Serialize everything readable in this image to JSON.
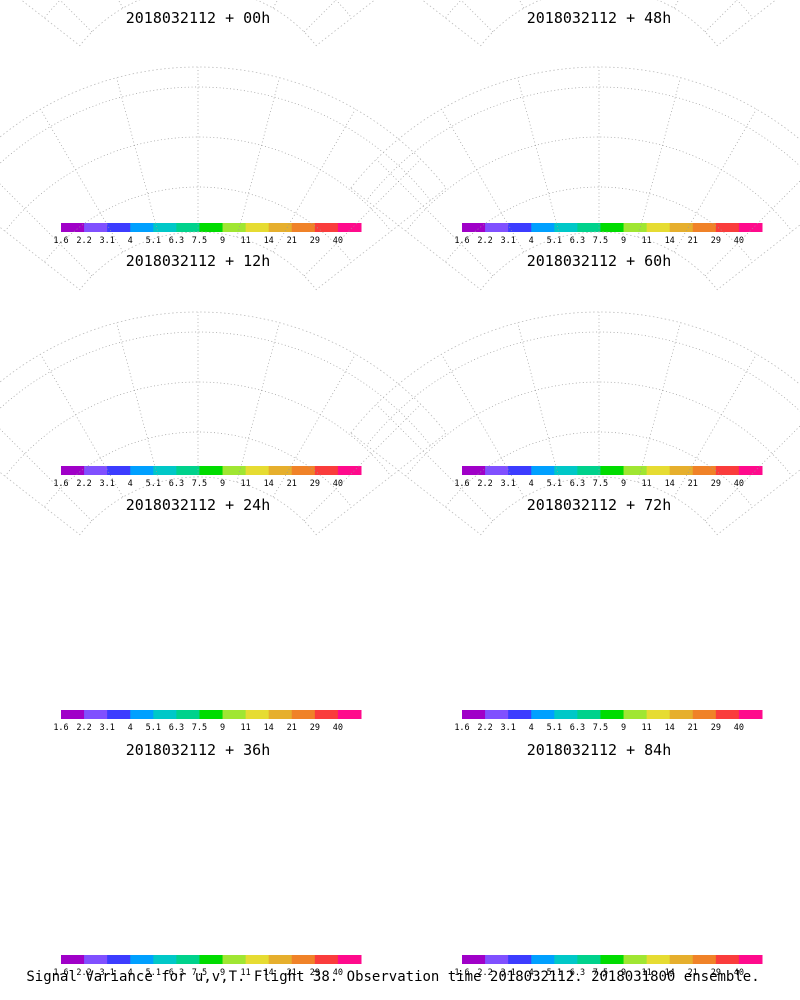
{
  "figure": {
    "footer": "Signal Variance for u,v,T. Flight 38. Observation time 2018032112. 2018031800 ensemble."
  },
  "colorbar": {
    "levels": [
      "1.6",
      "2.2",
      "3.1",
      "4",
      "5.1",
      "6.3",
      "7.5",
      "9",
      "11",
      "14",
      "21",
      "29",
      "40"
    ],
    "colors": [
      "#a000c8",
      "#8050ff",
      "#3c3cff",
      "#00a0ff",
      "#00c8c8",
      "#00d28c",
      "#00dc00",
      "#a0e632",
      "#e6dc32",
      "#e6af2d",
      "#f08228",
      "#fa3c3c",
      "#ff0a8c"
    ]
  },
  "panels": [
    {
      "title": "2018032112 + 00h",
      "intensity": 0
    },
    {
      "title": "2018032112 + 48h",
      "intensity": 4
    },
    {
      "title": "2018032112 + 12h",
      "intensity": 1
    },
    {
      "title": "2018032112 + 60h",
      "intensity": 5
    },
    {
      "title": "2018032112 + 24h",
      "intensity": 2
    },
    {
      "title": "2018032112 + 72h",
      "intensity": 6
    },
    {
      "title": "2018032112 + 36h",
      "intensity": 3
    },
    {
      "title": "2018032112 + 84h",
      "intensity": 7
    }
  ]
}
